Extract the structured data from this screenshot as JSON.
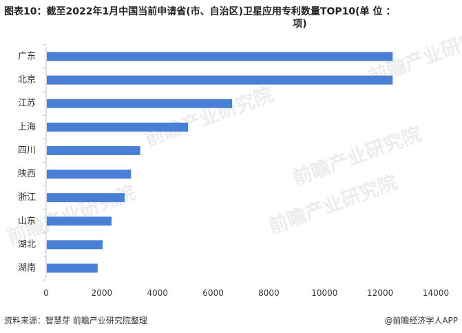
{
  "title_line1": "图表10：截至2022年1月中国当前申请省(市、自治区)卫星应用专利数量TOP10(单 位 ：",
  "title_line2": "项)",
  "source": "资料来源：智慧芽 前瞻产业研究院整理",
  "brand": "@前瞻经济学人APP",
  "watermark_text": "前瞻产业研究院",
  "colors": {
    "bar": "#4a7fd6",
    "axis": "#bfbfbf"
  },
  "chart_data": {
    "type": "bar",
    "orientation": "horizontal",
    "categories": [
      "广东",
      "北京",
      "江苏",
      "上海",
      "四川",
      "陕西",
      "浙江",
      "山东",
      "湖北",
      "湖南"
    ],
    "values": [
      12450,
      12450,
      6680,
      5100,
      3380,
      3050,
      2820,
      2350,
      2030,
      1850
    ],
    "xlim": [
      0,
      14000
    ],
    "xticks": [
      "0",
      "2000",
      "4000",
      "6000",
      "8000",
      "10000",
      "12000",
      "14000"
    ],
    "grid": false,
    "legend": "none"
  }
}
